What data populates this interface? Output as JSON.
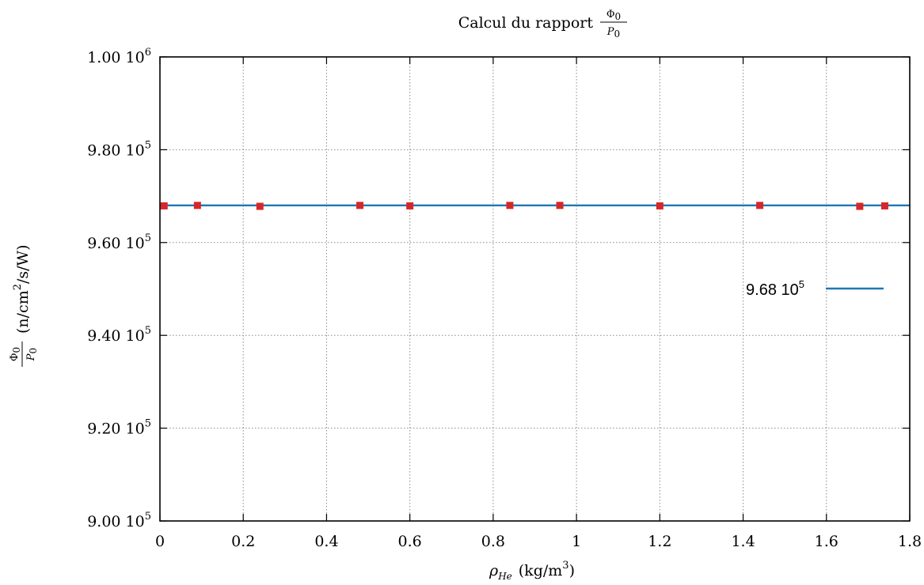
{
  "chart_data": {
    "type": "line",
    "title": "Calcul du rapport",
    "title_fraction": {
      "numerator": "Φ",
      "numerator_sub": "0",
      "denominator": "P",
      "denominator_sub": "0"
    },
    "xlabel": {
      "symbol": "ρ",
      "subscript": "He",
      "units": "(kg/m",
      "units_sup": "3",
      "units_close": ")"
    },
    "ylabel": {
      "numerator": "Φ",
      "numerator_sub": "0",
      "denominator": "P",
      "denominator_sub": "0",
      "units": "(n/cm",
      "units_sup": "2",
      "units_rest": "/s/W)"
    },
    "xlim": [
      0,
      1.8
    ],
    "ylim": [
      900000,
      1000000
    ],
    "x_ticks": [
      {
        "value": 0,
        "label": "0"
      },
      {
        "value": 0.2,
        "label": "0.2"
      },
      {
        "value": 0.4,
        "label": "0.4"
      },
      {
        "value": 0.6,
        "label": "0.6"
      },
      {
        "value": 0.8,
        "label": "0.8"
      },
      {
        "value": 1,
        "label": "1"
      },
      {
        "value": 1.2,
        "label": "1.2"
      },
      {
        "value": 1.4,
        "label": "1.4"
      },
      {
        "value": 1.6,
        "label": "1.6"
      },
      {
        "value": 1.8,
        "label": "1.8"
      }
    ],
    "y_ticks": [
      {
        "value": 900000,
        "mantissa": "9.00 10",
        "exp": "5"
      },
      {
        "value": 920000,
        "mantissa": "9.20 10",
        "exp": "5"
      },
      {
        "value": 940000,
        "mantissa": "9.40 10",
        "exp": "5"
      },
      {
        "value": 960000,
        "mantissa": "9.60 10",
        "exp": "5"
      },
      {
        "value": 980000,
        "mantissa": "9.80 10",
        "exp": "5"
      },
      {
        "value": 1000000,
        "mantissa": "1.00 10",
        "exp": "6"
      }
    ],
    "grid": true,
    "legend_position": "right",
    "series": [
      {
        "name": "9.68 10^5",
        "legend_label": "9.68 10",
        "legend_sup": "5",
        "kind": "line",
        "color": "#1f77b4",
        "x": [
          0,
          1.8
        ],
        "y": [
          968000,
          968000
        ]
      },
      {
        "kind": "scatter",
        "marker": "square",
        "color": "#d62728",
        "x": [
          0.01,
          0.09,
          0.24,
          0.48,
          0.6,
          0.84,
          0.96,
          1.2,
          1.44,
          1.68,
          1.74
        ],
        "y": [
          967900,
          968000,
          967800,
          968000,
          967900,
          968000,
          968000,
          967900,
          968000,
          967800,
          967900
        ]
      }
    ]
  }
}
